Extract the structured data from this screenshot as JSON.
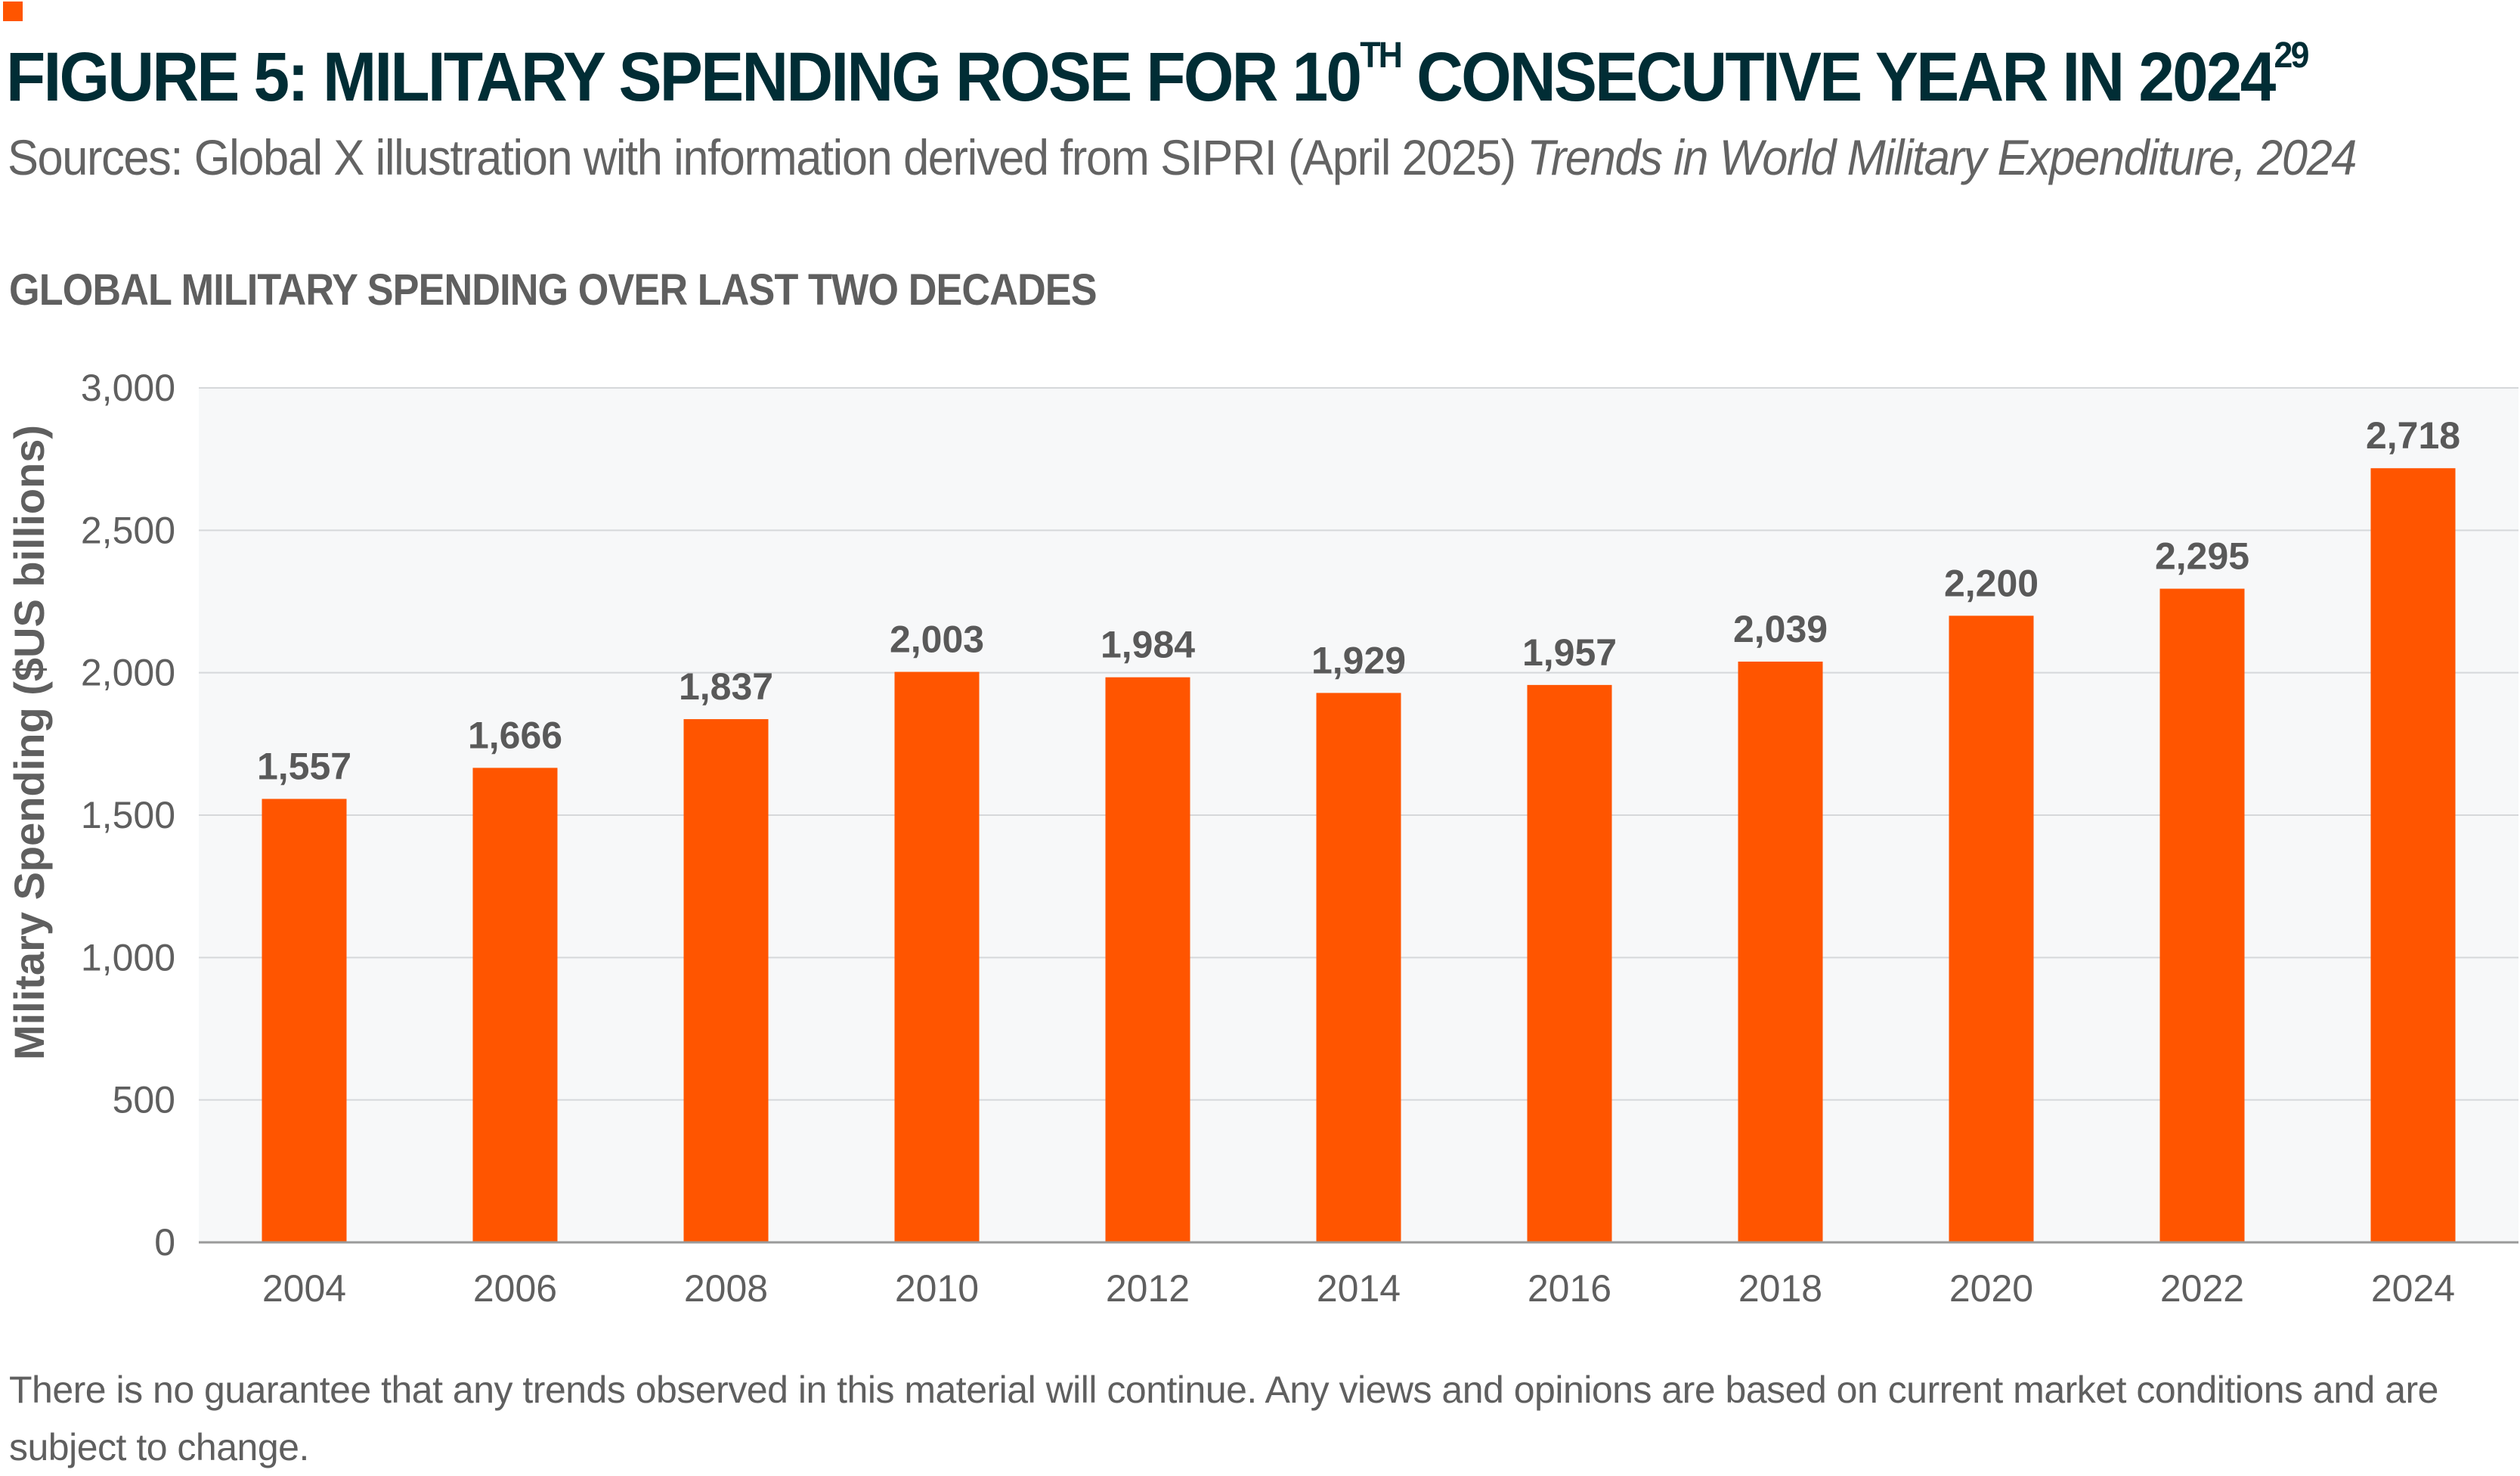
{
  "header": {
    "accent_color": "#ff5500",
    "title": "FIGURE 5: MILITARY SPENDING ROSE FOR 10",
    "title_sup1": "TH",
    "title_rest": " CONSECUTIVE YEAR IN 2024",
    "title_sup2": "29",
    "subtitle": "Sources: Global X illustration with information derived from SIPRI (April 2025) ",
    "subtitle_italic": "Trends in World Military Expenditure, 2024"
  },
  "chart_data": {
    "type": "bar",
    "title": "GLOBAL MILITARY SPENDING OVER LAST TWO DECADES",
    "xlabel": "",
    "ylabel": "Military Spending ($US billions)",
    "categories": [
      "2004",
      "2006",
      "2008",
      "2010",
      "2012",
      "2014",
      "2016",
      "2018",
      "2020",
      "2022",
      "2024"
    ],
    "values": [
      1557,
      1666,
      1837,
      2003,
      1984,
      1929,
      1957,
      2039,
      2200,
      2295,
      2718
    ],
    "data_labels": [
      "1,557",
      "1,666",
      "1,837",
      "2,003",
      "1,984",
      "1,929",
      "1,957",
      "2,039",
      "2,200",
      "2,295",
      "2,718"
    ],
    "ylim": [
      0,
      3000
    ],
    "yticks": [
      0,
      500,
      1000,
      1500,
      2000,
      2500,
      3000
    ],
    "ytick_labels": [
      "0",
      "500",
      "1,000",
      "1,500",
      "2,000",
      "2,500",
      "3,000"
    ],
    "grid": true,
    "bar_color": "#ff5500",
    "plot_background": "#f7f8f9"
  },
  "footnote": "There is no guarantee that any trends observed in this material will continue. Any views and opinions are based on current market conditions and are subject to change."
}
